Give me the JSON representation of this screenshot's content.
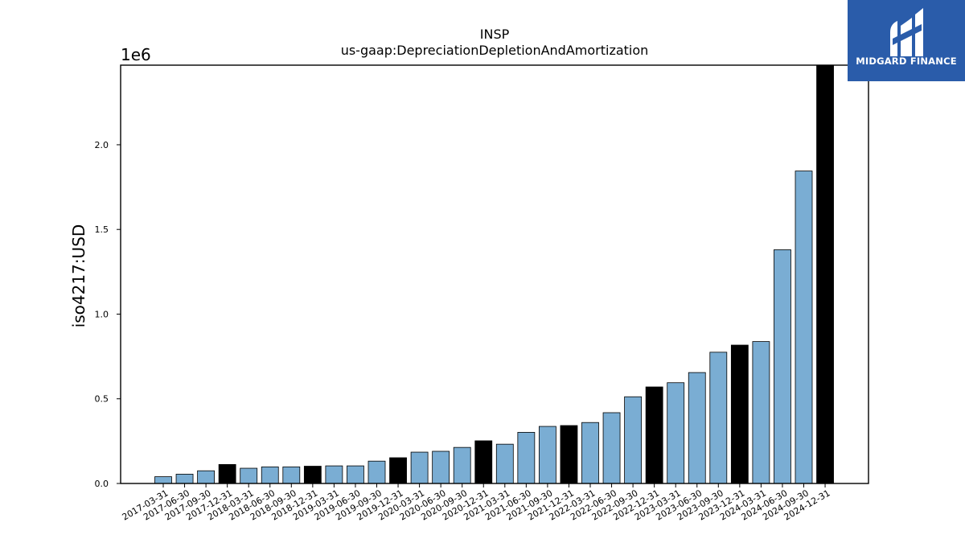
{
  "brand": {
    "name": "MIDGARD FINANCE",
    "bg_color": "#2a5caa"
  },
  "chart_data": {
    "type": "bar",
    "title": "INSP",
    "subtitle": "us-gaap:DepreciationDepletionAndAmortization",
    "xlabel": "",
    "ylabel": "iso4217:USD",
    "y_multiplier_label": "1e6",
    "ylim": [
      0,
      2.47
    ],
    "yticks": [
      0.0,
      0.5,
      1.0,
      1.5,
      2.0
    ],
    "ytick_labels": [
      "0.0",
      "0.5",
      "1.0",
      "1.5",
      "2.0"
    ],
    "grid": false,
    "colors": {
      "quarter": "#7aadd3",
      "year_end": "#000000",
      "edge": "#000000"
    },
    "categories": [
      "2017-03-31",
      "2017-06-30",
      "2017-09-30",
      "2017-12-31",
      "2018-03-31",
      "2018-06-30",
      "2018-09-30",
      "2018-12-31",
      "2019-03-31",
      "2019-06-30",
      "2019-09-30",
      "2019-12-31",
      "2020-03-31",
      "2020-06-30",
      "2020-09-30",
      "2020-12-31",
      "2021-03-31",
      "2021-06-30",
      "2021-09-30",
      "2021-12-31",
      "2022-03-31",
      "2022-06-30",
      "2022-09-30",
      "2022-12-31",
      "2023-03-31",
      "2023-06-30",
      "2023-09-30",
      "2023-12-31",
      "2024-03-31",
      "2024-06-30",
      "2024-09-30",
      "2024-12-31"
    ],
    "values": [
      0.04,
      0.055,
      0.075,
      0.112,
      0.09,
      0.098,
      0.098,
      0.102,
      0.104,
      0.104,
      0.132,
      0.152,
      0.185,
      0.19,
      0.213,
      0.252,
      0.232,
      0.302,
      0.337,
      0.342,
      0.36,
      0.418,
      0.512,
      0.57,
      0.595,
      0.655,
      0.775,
      0.817,
      0.838,
      1.38,
      1.845,
      2.47
    ],
    "year_end": [
      false,
      false,
      false,
      true,
      false,
      false,
      false,
      true,
      false,
      false,
      false,
      true,
      false,
      false,
      false,
      true,
      false,
      false,
      false,
      true,
      false,
      false,
      false,
      true,
      false,
      false,
      false,
      true,
      false,
      false,
      false,
      true
    ]
  }
}
